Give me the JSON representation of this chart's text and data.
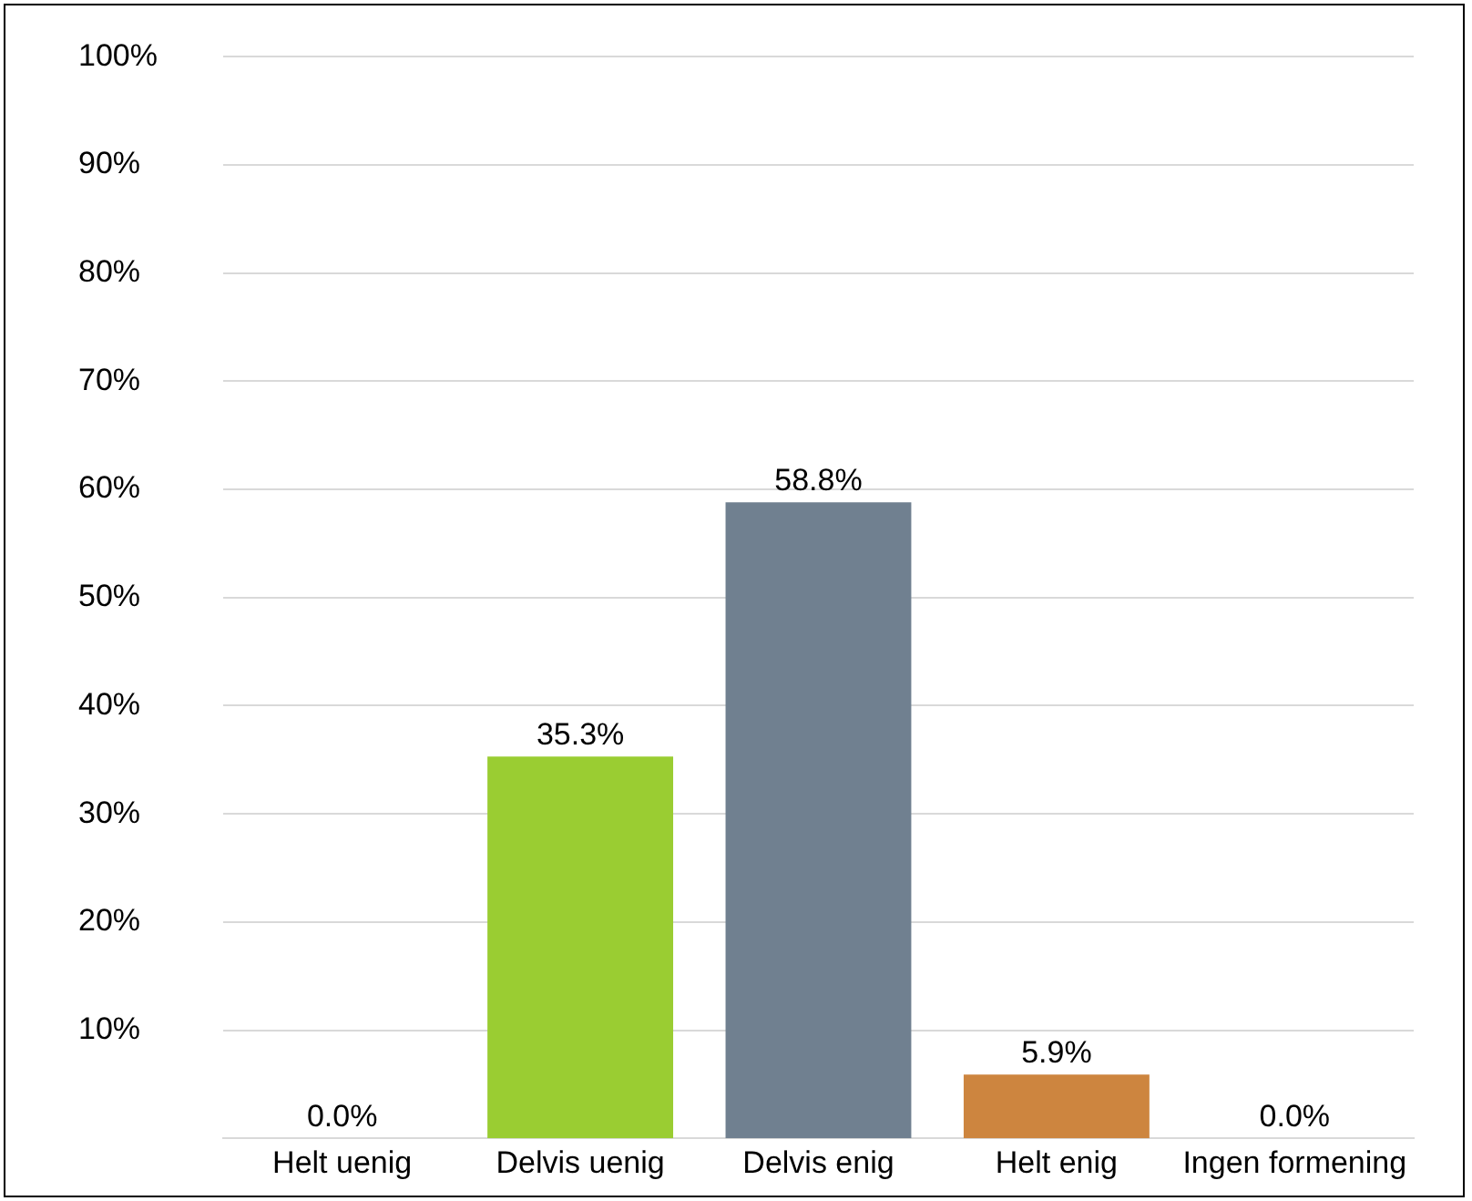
{
  "chart_data": {
    "type": "bar",
    "categories": [
      "Helt uenig",
      "Delvis uenig",
      "Delvis enig",
      "Helt enig",
      "Ingen formening"
    ],
    "values": [
      0,
      35.3,
      58.8,
      5.9,
      0
    ],
    "colors": [
      "#9acd32",
      "#9acd32",
      "#708090",
      "#cd853f",
      "#cd853f"
    ],
    "value_labels": [
      "0.0%",
      "35.3%",
      "58.8%",
      "5.9%",
      "0.0%"
    ],
    "ylim": [
      0,
      100
    ],
    "yticks": [
      {
        "value": 0,
        "label": null
      },
      {
        "value": 10,
        "label": "10%"
      },
      {
        "value": 20,
        "label": "20%"
      },
      {
        "value": 30,
        "label": "30%"
      },
      {
        "value": 40,
        "label": "40%"
      },
      {
        "value": 50,
        "label": "50%"
      },
      {
        "value": 60,
        "label": "60%"
      },
      {
        "value": 70,
        "label": "70%"
      },
      {
        "value": 80,
        "label": "80%"
      },
      {
        "value": 90,
        "label": "90%"
      },
      {
        "value": 100,
        "label": "100%"
      }
    ],
    "grid": "y",
    "legend": false
  }
}
